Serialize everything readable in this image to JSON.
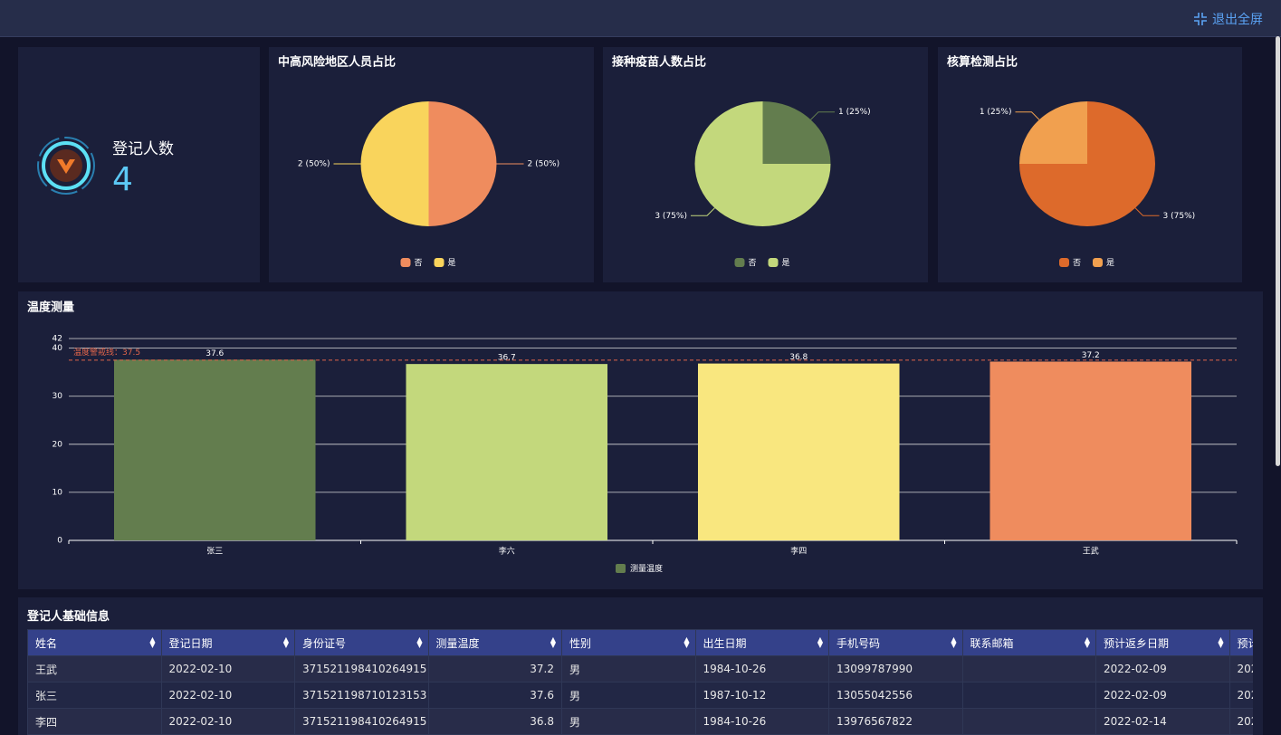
{
  "header": {
    "exit_button": "退出全屏"
  },
  "stat": {
    "label": "登记人数",
    "value": 4
  },
  "chart_data": [
    {
      "type": "pie",
      "title": "中高风险地区人员占比",
      "categories": [
        "否",
        "是"
      ],
      "values": [
        2,
        2
      ],
      "value_labels": [
        "2 (50%)",
        "2 (50%)"
      ],
      "colors": [
        "#ef8c5e",
        "#f9d45c"
      ]
    },
    {
      "type": "pie",
      "title": "接种疫苗人数占比",
      "categories": [
        "否",
        "是"
      ],
      "values": [
        1,
        3
      ],
      "value_labels": [
        "1 (25%)",
        "3 (75%)"
      ],
      "colors": [
        "#637d4e",
        "#c3d87c"
      ]
    },
    {
      "type": "pie",
      "title": "核算检测占比",
      "categories": [
        "否",
        "是"
      ],
      "values": [
        3,
        1
      ],
      "value_labels": [
        "3 (75%)",
        "1 (25%)"
      ],
      "colors": [
        "#dd6a2b",
        "#f1a04f"
      ]
    },
    {
      "type": "bar",
      "title": "温度测量",
      "categories": [
        "张三",
        "李六",
        "李四",
        "王武"
      ],
      "series": [
        {
          "name": "测量温度",
          "values": [
            37.6,
            36.7,
            36.8,
            37.2
          ],
          "colors": [
            "#637d4e",
            "#c3d87c",
            "#f9e77f",
            "#ef8c5e"
          ]
        }
      ],
      "ylim": [
        0,
        42
      ],
      "yticks": [
        0,
        10,
        20,
        30,
        40,
        42
      ],
      "grid": true,
      "mark_line": {
        "label": "温度警戒线：",
        "value": 37.5,
        "color": "#e0654a"
      }
    }
  ],
  "table": {
    "title": "登记人基础信息",
    "columns": [
      "姓名",
      "登记日期",
      "身份证号",
      "测量温度",
      "性别",
      "出生日期",
      "手机号码",
      "联系邮箱",
      "预计返乡日期",
      "预计"
    ],
    "rows": [
      [
        "王武",
        "2022-02-10",
        "371521198410264915",
        37.2,
        "男",
        "1984-10-26",
        "13099787990",
        null,
        "2022-02-09",
        "202"
      ],
      [
        "张三",
        "2022-02-10",
        "371521198710123153",
        37.6,
        "男",
        "1987-10-12",
        "13055042556",
        null,
        "2022-02-09",
        "202"
      ],
      [
        "李四",
        "2022-02-10",
        "371521198410264915",
        36.8,
        "男",
        "1984-10-26",
        "13976567822",
        null,
        "2022-02-14",
        "202"
      ]
    ]
  }
}
